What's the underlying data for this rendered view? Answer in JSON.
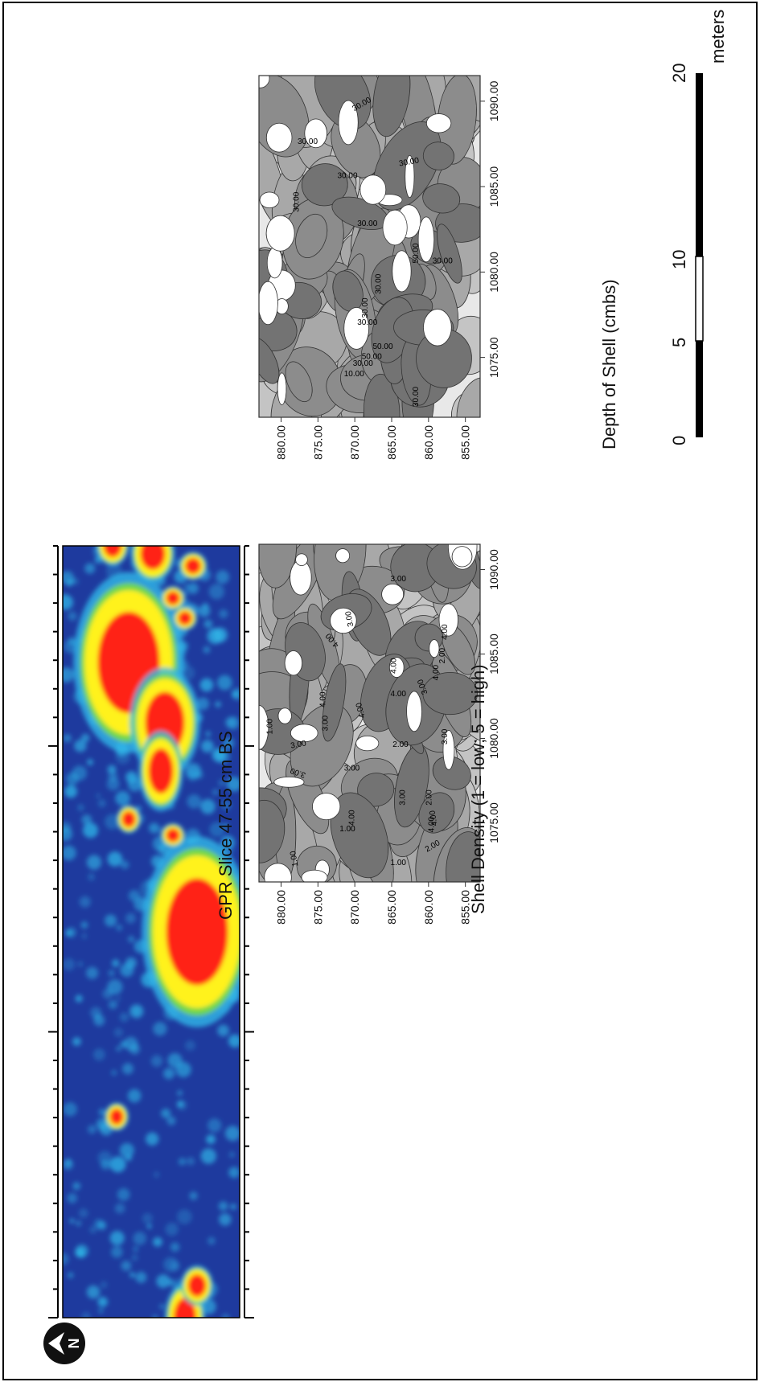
{
  "panels": {
    "gpr": {
      "title": "GPR Slice 47-55 cm BS"
    },
    "density": {
      "title": "Shell Density (1 = low; 5 = high)",
      "x_ticks": [
        "1075.00",
        "1080.00",
        "1085.00",
        "1090.00"
      ],
      "y_ticks": [
        "880.00",
        "875.00",
        "870.00",
        "865.00",
        "860.00",
        "855.00"
      ],
      "contour_labels": [
        "1.00",
        "1.00",
        "1.00",
        "1.00",
        "2.00",
        "2.00",
        "2.00",
        "2.00",
        "3.00",
        "3.00",
        "3.00",
        "3.00",
        "3.00",
        "3.00",
        "3.00",
        "3.00",
        "3.00",
        "4.00",
        "4.00",
        "4.00",
        "4.00",
        "4.00",
        "4.00",
        "4.00",
        "4.00",
        "4.00",
        "4.00"
      ]
    },
    "depth": {
      "title": "Depth of Shell (cmbs)",
      "x_ticks": [
        "1075.00",
        "1080.00",
        "1085.00",
        "1090.00"
      ],
      "y_ticks": [
        "880.00",
        "875.00",
        "870.00",
        "865.00",
        "860.00",
        "855.00"
      ],
      "contour_labels": [
        "10.00",
        "30.00",
        "50.00",
        "50.00",
        "30.00",
        "30.00",
        "30.00",
        "30.00",
        "30.00",
        "30.00",
        "50.00",
        "30.00",
        "30.00",
        "30.00",
        "30.00",
        "30.00"
      ]
    }
  },
  "scale_bar": {
    "ticks": [
      "0",
      "5",
      "10",
      "20"
    ],
    "unit": "meters"
  },
  "north_arrow": {
    "label": "N",
    "icon": "north-arrow-icon"
  },
  "colors": {
    "low": "#1e3a9e",
    "mid": "#2fb7e8",
    "high": "#ff2418",
    "yellow": "#fff21a",
    "green": "#6fd64a"
  }
}
